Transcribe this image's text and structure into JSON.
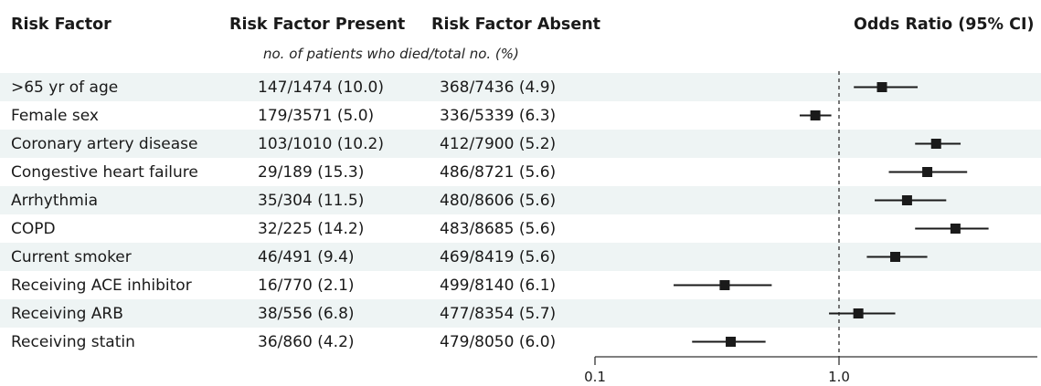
{
  "headers": {
    "risk_factor": "Risk Factor",
    "present": "Risk Factor Present",
    "absent": "Risk Factor Absent",
    "odds_ratio": "Odds Ratio (95% CI)",
    "subheader": "no. of patients who died/total no. (%)"
  },
  "rows": [
    {
      "label": ">65 yr of age",
      "present": "147/1474 (10.0)",
      "absent": "368/7436 (4.9)"
    },
    {
      "label": "Female sex",
      "present": "179/3571 (5.0)",
      "absent": "336/5339 (6.3)"
    },
    {
      "label": "Coronary artery disease",
      "present": "103/1010 (10.2)",
      "absent": "412/7900 (5.2)"
    },
    {
      "label": "Congestive heart failure",
      "present": "29/189 (15.3)",
      "absent": "486/8721 (5.6)"
    },
    {
      "label": "Arrhythmia",
      "present": "35/304 (11.5)",
      "absent": "480/8606 (5.6)"
    },
    {
      "label": "COPD",
      "present": "32/225 (14.2)",
      "absent": "483/8685 (5.6)"
    },
    {
      "label": "Current smoker",
      "present": "46/491 (9.4)",
      "absent": "469/8419 (5.6)"
    },
    {
      "label": "Receiving ACE inhibitor",
      "present": "16/770 (2.1)",
      "absent": "499/8140 (6.1)"
    },
    {
      "label": "Receiving ARB",
      "present": "38/556 (6.8)",
      "absent": "477/8354 (5.7)"
    },
    {
      "label": "Receiving statin",
      "present": "36/860 (4.2)",
      "absent": "479/8050 (6.0)"
    }
  ],
  "chart_data": {
    "type": "forest",
    "xlabel": "Odds Ratio (95% CI)",
    "x_scale": "log",
    "xlim": [
      0.1,
      6.0
    ],
    "reference_line": 1.0,
    "tick_labels": [
      "0.1",
      "1.0"
    ],
    "categories": [
      ">65 yr of age",
      "Female sex",
      "Coronary artery disease",
      "Congestive heart failure",
      "Arrhythmia",
      "COPD",
      "Current smoker",
      "Receiving ACE inhibitor",
      "Receiving ARB",
      "Receiving statin"
    ],
    "odds_ratio": [
      1.5,
      0.8,
      2.5,
      2.3,
      1.9,
      3.0,
      1.7,
      0.34,
      1.2,
      0.36
    ],
    "ci_low": [
      1.15,
      0.69,
      2.05,
      1.6,
      1.4,
      2.05,
      1.3,
      0.21,
      0.91,
      0.25
    ],
    "ci_high": [
      2.1,
      0.93,
      3.15,
      3.35,
      2.75,
      4.1,
      2.3,
      0.53,
      1.7,
      0.5
    ]
  },
  "colors": {
    "row_shade": "#eef4f4",
    "marker": "#1a1a1a",
    "reference_line": "#555555"
  }
}
